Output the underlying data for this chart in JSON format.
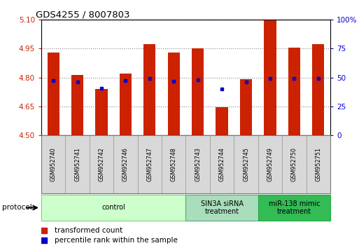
{
  "title": "GDS4255 / 8007803",
  "samples": [
    "GSM952740",
    "GSM952741",
    "GSM952742",
    "GSM952746",
    "GSM952747",
    "GSM952748",
    "GSM952743",
    "GSM952744",
    "GSM952745",
    "GSM952749",
    "GSM952750",
    "GSM952751"
  ],
  "red_values": [
    4.93,
    4.815,
    4.74,
    4.82,
    4.975,
    4.93,
    4.95,
    4.645,
    4.79,
    5.1,
    4.955,
    4.975
  ],
  "blue_values": [
    4.785,
    4.775,
    4.745,
    4.785,
    4.795,
    4.782,
    4.788,
    4.742,
    4.775,
    4.795,
    4.795,
    4.795
  ],
  "ymin": 4.5,
  "ymax": 5.1,
  "yticks_left": [
    4.5,
    4.65,
    4.8,
    4.95,
    5.1
  ],
  "yticks_right_vals": [
    0,
    25,
    50,
    75,
    100
  ],
  "yticks_right_labels": [
    "0",
    "25",
    "50",
    "75",
    "100%"
  ],
  "bar_color": "#cc2200",
  "dot_color": "#0000cc",
  "groups": [
    {
      "label": "control",
      "start": 0,
      "end": 6,
      "color": "#ccffcc",
      "edge_color": "#88cc88"
    },
    {
      "label": "SIN3A siRNA\ntreatment",
      "start": 6,
      "end": 9,
      "color": "#aaddbb",
      "edge_color": "#55aa77"
    },
    {
      "label": "miR-138 mimic\ntreatment",
      "start": 9,
      "end": 12,
      "color": "#33bb55",
      "edge_color": "#22aa44"
    }
  ],
  "bar_width": 0.5,
  "protocol_label": "protocol",
  "legend_items": [
    {
      "label": "transformed count",
      "color": "#cc2200"
    },
    {
      "label": "percentile rank within the sample",
      "color": "#0000cc"
    }
  ]
}
